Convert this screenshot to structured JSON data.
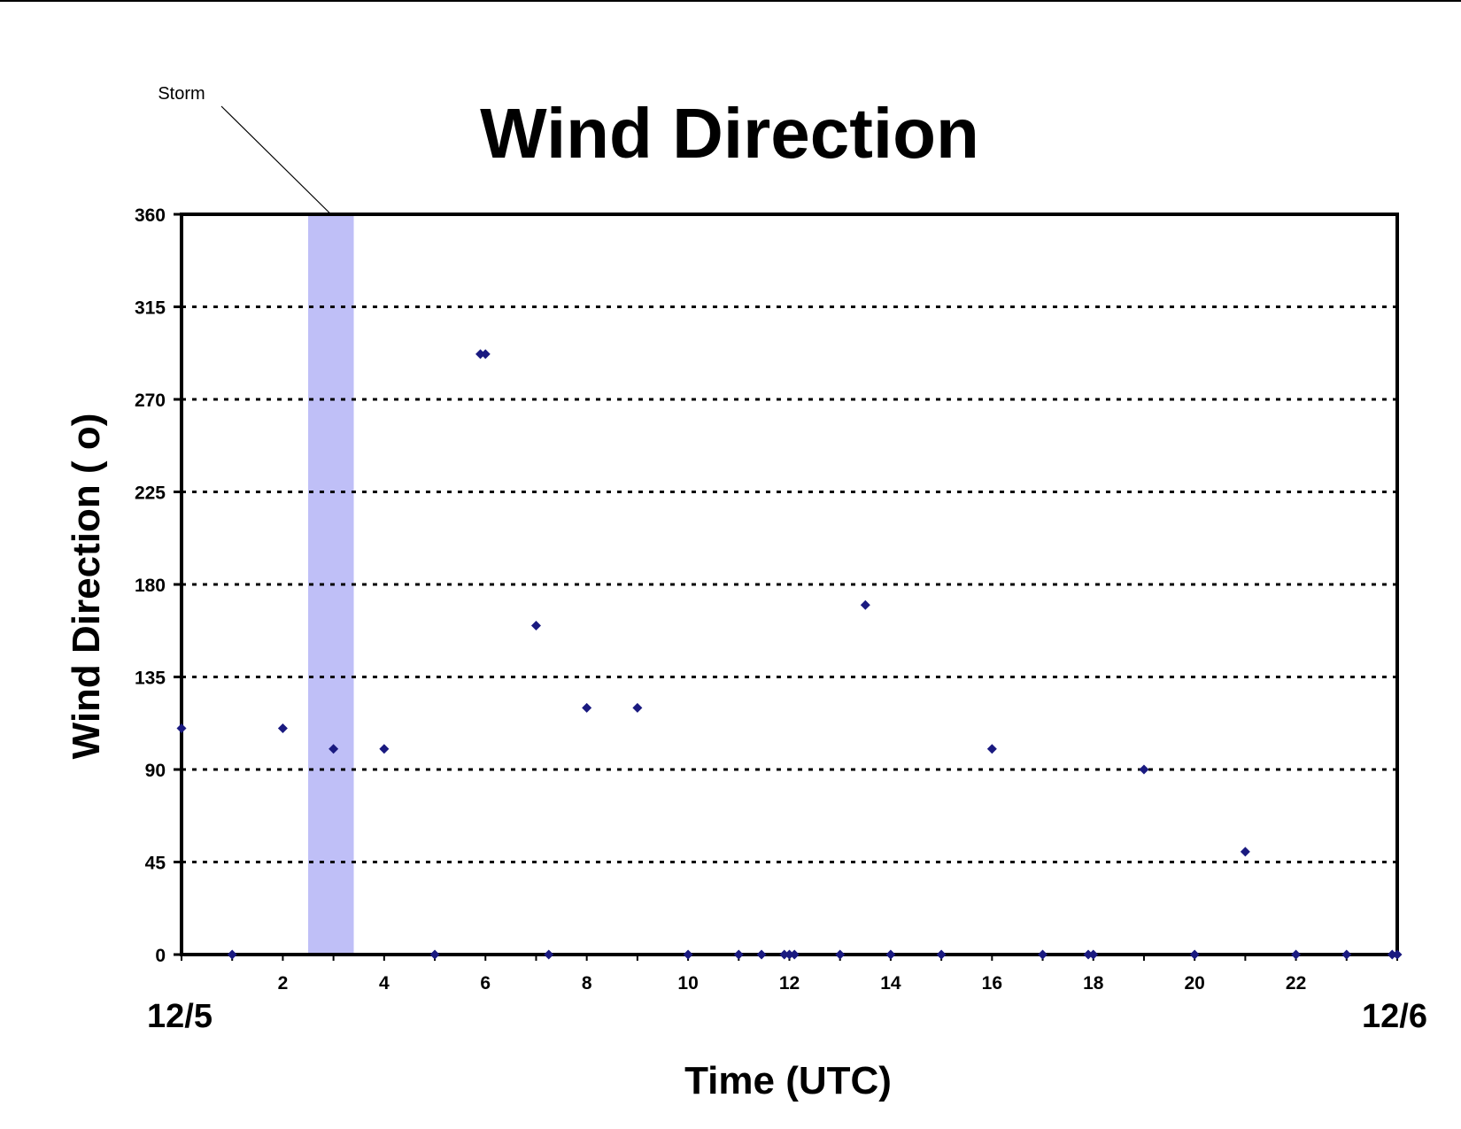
{
  "chart_data": {
    "type": "scatter",
    "title": "Wind Direction",
    "xlabel": "Time (UTC)",
    "ylabel": "Wind Direction ( o)",
    "xlim": [
      0,
      24
    ],
    "ylim": [
      0,
      360
    ],
    "xticks": [
      0,
      2,
      4,
      6,
      8,
      10,
      12,
      14,
      16,
      18,
      20,
      22
    ],
    "yticks": [
      0,
      45,
      90,
      135,
      180,
      225,
      270,
      315,
      360
    ],
    "gridlines": "horizontal dotted",
    "date_start": "12/5",
    "date_end": "12/6",
    "annotation": {
      "label": "Storm",
      "x_start": 2.5,
      "x_end": 3.4,
      "color": "#bfbff7"
    },
    "marker_color": "#1a1a80",
    "series": [
      {
        "points": [
          [
            0,
            110
          ],
          [
            1,
            0
          ],
          [
            2,
            110
          ],
          [
            3,
            100
          ],
          [
            4,
            100
          ],
          [
            5,
            0
          ],
          [
            5.9,
            292
          ],
          [
            6.0,
            292
          ],
          [
            7.0,
            160
          ],
          [
            7.25,
            0
          ],
          [
            8.0,
            120
          ],
          [
            9.0,
            120
          ],
          [
            10.0,
            0
          ],
          [
            11.0,
            0
          ],
          [
            11.45,
            0
          ],
          [
            11.9,
            0
          ],
          [
            12.0,
            0
          ],
          [
            12.1,
            0
          ],
          [
            13.0,
            0
          ],
          [
            13.5,
            170
          ],
          [
            14.0,
            0
          ],
          [
            15.0,
            0
          ],
          [
            16.0,
            100
          ],
          [
            17.0,
            0
          ],
          [
            17.9,
            0
          ],
          [
            18.0,
            0
          ],
          [
            19.0,
            90
          ],
          [
            20.0,
            0
          ],
          [
            21.0,
            50
          ],
          [
            22.0,
            0
          ],
          [
            23.0,
            0
          ],
          [
            23.9,
            0
          ],
          [
            24.0,
            0
          ]
        ]
      }
    ]
  }
}
